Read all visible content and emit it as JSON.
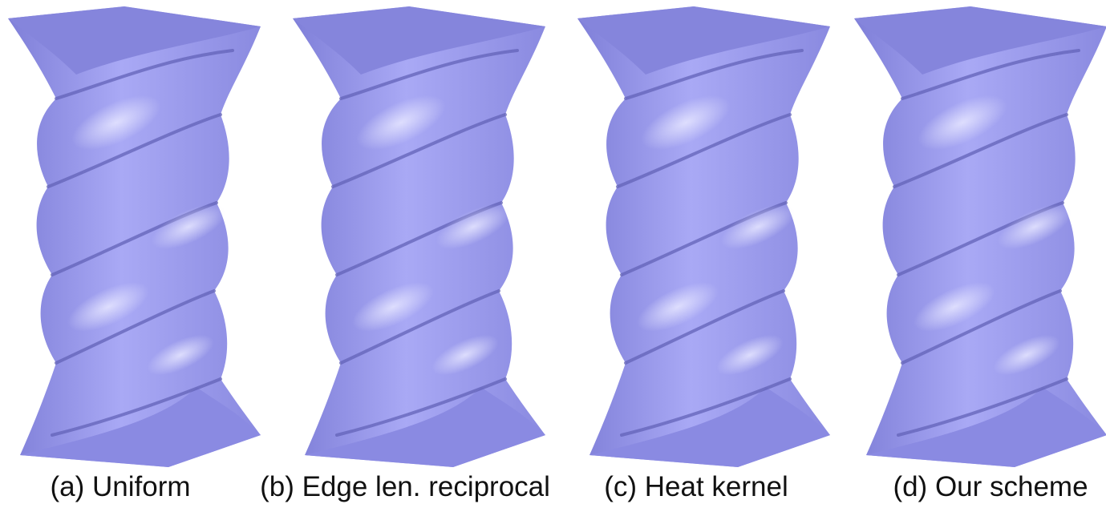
{
  "figure": {
    "panels": [
      {
        "caption": "(a) Uniform"
      },
      {
        "caption": "(b) Edge len. reciprocal"
      },
      {
        "caption": "(c) Heat kernel"
      },
      {
        "caption": "(d) Our scheme"
      }
    ]
  }
}
